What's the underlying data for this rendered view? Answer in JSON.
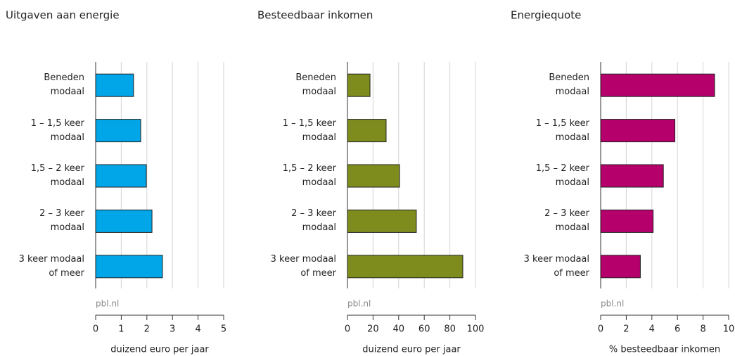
{
  "chart_data": [
    {
      "type": "hbar",
      "title": "Uitgaven aan energie",
      "categories": [
        "Beneden modaal",
        "1 – 1,5 keer modaal",
        "1,5 – 2 keer modaal",
        "2 – 3 keer modaal",
        "3 keer modaal of meer"
      ],
      "values": [
        1.48,
        1.76,
        1.98,
        2.2,
        2.61
      ],
      "color": "#00a6e8",
      "xlim": [
        0,
        5
      ],
      "xticks": [
        0,
        1,
        2,
        3,
        4,
        5
      ],
      "grid": true,
      "xlabel": "duizend euro per jaar",
      "source": "pbl.nl"
    },
    {
      "type": "hbar",
      "title": "Besteedbaar inkomen",
      "categories": [
        "Beneden modaal",
        "1 – 1,5 keer modaal",
        "1,5 – 2 keer modaal",
        "2 – 3 keer modaal",
        "3 keer modaal of meer"
      ],
      "values": [
        17.6,
        30.2,
        40.7,
        53.8,
        90.1
      ],
      "color": "#7e8c1e",
      "xlim": [
        0,
        100
      ],
      "xticks": [
        0,
        20,
        40,
        60,
        80,
        100
      ],
      "grid": true,
      "xlabel": "duizend euro per jaar",
      "source": "pbl.nl"
    },
    {
      "type": "hbar",
      "title": "Energiequote",
      "categories": [
        "Beneden modaal",
        "1 – 1,5 keer modaal",
        "1,5 – 2 keer modaal",
        "2 – 3 keer modaal",
        "3 keer modaal of meer"
      ],
      "values": [
        8.9,
        5.8,
        4.9,
        4.1,
        3.1
      ],
      "color": "#b5006b",
      "xlim": [
        0,
        10
      ],
      "xticks": [
        0,
        2,
        4,
        6,
        8,
        10
      ],
      "grid": true,
      "xlabel": "% besteedbaar inkomen",
      "source": "pbl.nl"
    }
  ]
}
